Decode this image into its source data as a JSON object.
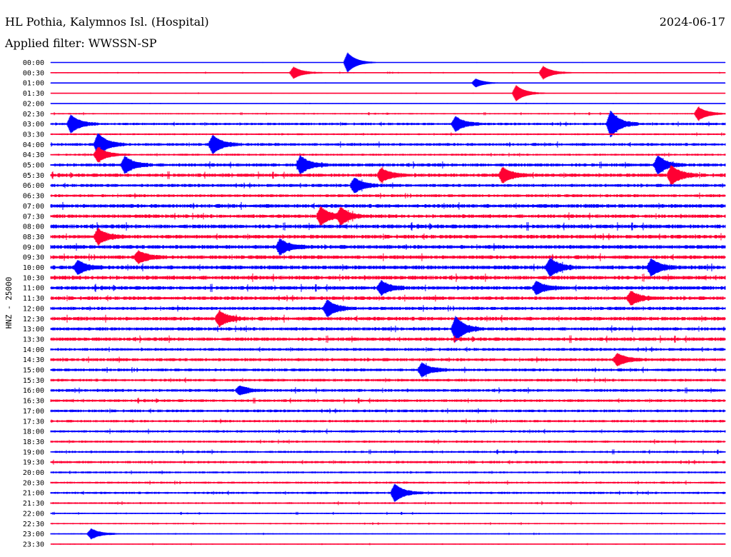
{
  "header": {
    "station": "HL Pothia, Kalymnos Isl. (Hospital)",
    "date": "2024-06-17",
    "filter": "Applied filter: WWSSN-SP"
  },
  "chart_data": {
    "type": "line",
    "ylabel": "HNZ - 25000",
    "colors": {
      "even_trace": "#0000ff",
      "odd_trace": "#ff0033"
    },
    "time_labels": [
      "00:00",
      "00:30",
      "01:00",
      "01:30",
      "02:00",
      "02:30",
      "03:00",
      "03:30",
      "04:00",
      "04:30",
      "05:00",
      "05:30",
      "06:00",
      "06:30",
      "07:00",
      "07:30",
      "08:00",
      "08:30",
      "09:00",
      "09:30",
      "10:00",
      "10:30",
      "11:00",
      "11:30",
      "12:00",
      "12:30",
      "13:00",
      "13:30",
      "14:00",
      "14:30",
      "15:00",
      "15:30",
      "16:00",
      "16:30",
      "17:00",
      "17:30",
      "18:00",
      "18:30",
      "19:00",
      "19:30",
      "20:00",
      "20:30",
      "21:00",
      "21:30",
      "22:00",
      "22:30",
      "23:00",
      "23:30"
    ],
    "noise_level": [
      0.2,
      0.5,
      0.25,
      0.4,
      0.35,
      0.7,
      1.2,
      0.9,
      1.4,
      1.0,
      1.6,
      1.7,
      1.5,
      1.4,
      1.8,
      1.7,
      1.9,
      1.8,
      1.9,
      1.8,
      1.9,
      1.9,
      1.8,
      1.7,
      1.6,
      1.8,
      1.6,
      1.7,
      1.4,
      1.5,
      1.4,
      1.3,
      1.4,
      1.3,
      1.3,
      1.2,
      1.2,
      1.1,
      1.1,
      1.2,
      1.0,
      1.0,
      1.1,
      0.9,
      0.7,
      0.7,
      0.6,
      0.5
    ],
    "events": [
      {
        "trace": 0,
        "x": 0.44,
        "amp": 14
      },
      {
        "trace": 1,
        "x": 0.36,
        "amp": 8
      },
      {
        "trace": 1,
        "x": 0.73,
        "amp": 9
      },
      {
        "trace": 2,
        "x": 0.63,
        "amp": 6
      },
      {
        "trace": 3,
        "x": 0.69,
        "amp": 11
      },
      {
        "trace": 5,
        "x": 0.96,
        "amp": 9
      },
      {
        "trace": 6,
        "x": 0.03,
        "amp": 12
      },
      {
        "trace": 6,
        "x": 0.6,
        "amp": 10
      },
      {
        "trace": 6,
        "x": 0.83,
        "amp": 18
      },
      {
        "trace": 8,
        "x": 0.07,
        "amp": 15
      },
      {
        "trace": 8,
        "x": 0.24,
        "amp": 12
      },
      {
        "trace": 9,
        "x": 0.07,
        "amp": 10
      },
      {
        "trace": 10,
        "x": 0.11,
        "amp": 11
      },
      {
        "trace": 10,
        "x": 0.37,
        "amp": 12
      },
      {
        "trace": 10,
        "x": 0.9,
        "amp": 12
      },
      {
        "trace": 11,
        "x": 0.49,
        "amp": 9
      },
      {
        "trace": 11,
        "x": 0.67,
        "amp": 10
      },
      {
        "trace": 11,
        "x": 0.92,
        "amp": 13
      },
      {
        "trace": 12,
        "x": 0.45,
        "amp": 10
      },
      {
        "trace": 15,
        "x": 0.4,
        "amp": 12
      },
      {
        "trace": 15,
        "x": 0.43,
        "amp": 10
      },
      {
        "trace": 17,
        "x": 0.07,
        "amp": 10
      },
      {
        "trace": 18,
        "x": 0.34,
        "amp": 10
      },
      {
        "trace": 19,
        "x": 0.13,
        "amp": 8
      },
      {
        "trace": 20,
        "x": 0.74,
        "amp": 12
      },
      {
        "trace": 20,
        "x": 0.89,
        "amp": 11
      },
      {
        "trace": 20,
        "x": 0.04,
        "amp": 9
      },
      {
        "trace": 22,
        "x": 0.49,
        "amp": 9
      },
      {
        "trace": 22,
        "x": 0.72,
        "amp": 8
      },
      {
        "trace": 23,
        "x": 0.86,
        "amp": 9
      },
      {
        "trace": 24,
        "x": 0.41,
        "amp": 11
      },
      {
        "trace": 25,
        "x": 0.25,
        "amp": 10
      },
      {
        "trace": 26,
        "x": 0.6,
        "amp": 17
      },
      {
        "trace": 29,
        "x": 0.84,
        "amp": 8
      },
      {
        "trace": 30,
        "x": 0.55,
        "amp": 9
      },
      {
        "trace": 32,
        "x": 0.28,
        "amp": 6
      },
      {
        "trace": 42,
        "x": 0.51,
        "amp": 12
      },
      {
        "trace": 46,
        "x": 0.06,
        "amp": 7
      }
    ]
  }
}
